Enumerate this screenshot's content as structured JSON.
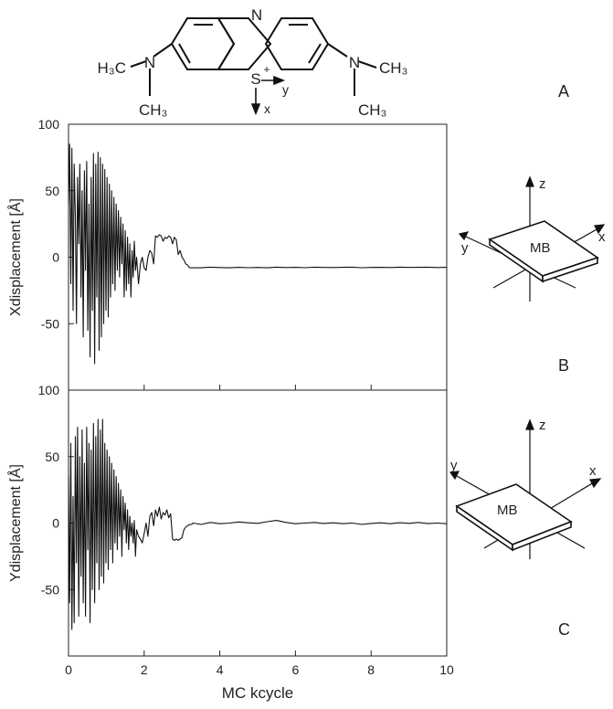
{
  "molecule": {
    "atoms": {
      "n_ring": "N",
      "s_ring": "S",
      "n_left": "N",
      "n_right": "N",
      "h3c_left": "H₃C",
      "ch3_left": "CH₃",
      "ch3_right_top": "CH₃",
      "ch3_right_bottom": "CH₃",
      "s_charge": "+"
    },
    "axes": {
      "x": "x",
      "y": "y"
    }
  },
  "panel_labels": {
    "a": "A",
    "b": "B",
    "c": "C"
  },
  "inset_b": {
    "z": "z",
    "x": "x",
    "y": "y",
    "mb": "MB"
  },
  "inset_c": {
    "z": "z",
    "x": "x",
    "y": "y",
    "mb": "MB"
  },
  "chart_data": [
    {
      "type": "line",
      "panel": "B",
      "xlabel": "",
      "ylabel": "Xdisplacement [Å]",
      "xlim": [
        0,
        10
      ],
      "ylim": [
        -100,
        100
      ],
      "xticks": [
        "0",
        "2",
        "4",
        "6",
        "8",
        "10"
      ],
      "yticks": [
        "100",
        "50",
        "0",
        "-50"
      ],
      "grid": false,
      "series": [
        {
          "x": [
            0,
            0.03,
            0.06,
            0.09,
            0.12,
            0.15,
            0.18,
            0.21,
            0.24,
            0.27,
            0.3,
            0.33,
            0.36,
            0.39,
            0.42,
            0.45,
            0.48,
            0.51,
            0.54,
            0.57,
            0.6,
            0.63,
            0.66,
            0.69,
            0.72,
            0.75,
            0.78,
            0.81,
            0.84,
            0.87,
            0.9,
            0.93,
            0.96,
            0.99,
            1.02,
            1.05,
            1.08,
            1.11,
            1.14,
            1.17,
            1.2,
            1.23,
            1.26,
            1.29,
            1.32,
            1.35,
            1.38,
            1.41,
            1.44,
            1.47,
            1.5,
            1.53,
            1.56,
            1.59,
            1.62,
            1.65,
            1.68,
            1.71,
            1.74,
            1.77,
            1.8,
            1.85,
            1.9,
            1.95,
            2.0,
            2.05,
            2.1,
            2.15,
            2.2,
            2.25,
            2.3,
            2.35,
            2.4,
            2.45,
            2.5,
            2.55,
            2.6,
            2.65,
            2.7,
            2.75,
            2.8,
            2.85,
            2.9,
            2.95,
            3.0,
            3.05,
            3.1,
            3.15,
            3.2,
            3.25,
            3.3,
            3.5,
            3.75,
            4.0,
            4.25,
            4.5,
            4.75,
            5.0,
            5.25,
            5.5,
            5.75,
            6.0,
            6.25,
            6.5,
            6.75,
            7.0,
            7.25,
            7.5,
            7.75,
            8.0,
            8.25,
            8.5,
            8.75,
            9.0,
            9.25,
            9.5,
            9.75,
            10.0
          ],
          "y": [
            40,
            85,
            -20,
            82,
            -40,
            70,
            30,
            -50,
            60,
            10,
            70,
            -30,
            50,
            -60,
            65,
            -10,
            72,
            -55,
            40,
            -75,
            60,
            -40,
            78,
            -80,
            70,
            -30,
            79,
            -70,
            75,
            -60,
            70,
            -50,
            66,
            -40,
            60,
            -45,
            55,
            -30,
            50,
            -20,
            45,
            -25,
            40,
            -10,
            35,
            -15,
            30,
            -5,
            25,
            -30,
            20,
            -25,
            15,
            -20,
            10,
            -30,
            5,
            -15,
            12,
            -10,
            0,
            -20,
            -5,
            0,
            -8,
            -10,
            0,
            5,
            3,
            -5,
            16,
            15,
            17,
            16,
            12,
            15,
            14,
            16,
            15,
            10,
            15,
            13,
            2,
            5,
            0,
            -2,
            -5,
            -6,
            -8,
            -8,
            -8,
            -8,
            -7.5,
            -7.8,
            -8,
            -7.6,
            -7.9,
            -7.7,
            -8,
            -7.5,
            -7.8,
            -7.6,
            -7.9,
            -7.5,
            -7.7,
            -7.8,
            -7.6,
            -7.5,
            -7.9,
            -7.7,
            -7.6,
            -7.8,
            -7.5,
            -7.7,
            -7.6,
            -7.5,
            -7.8,
            -7.6
          ]
        }
      ]
    },
    {
      "type": "line",
      "panel": "C",
      "xlabel": "MC kcycle",
      "ylabel": "Ydisplacement [Å]",
      "xlim": [
        0,
        10
      ],
      "ylim": [
        -100,
        100
      ],
      "xticks": [
        "0",
        "2",
        "4",
        "6",
        "8",
        "10"
      ],
      "yticks": [
        "100",
        "50",
        "0",
        "-50"
      ],
      "grid": false,
      "series": [
        {
          "x": [
            0,
            0.03,
            0.06,
            0.09,
            0.12,
            0.15,
            0.18,
            0.21,
            0.24,
            0.27,
            0.3,
            0.33,
            0.36,
            0.39,
            0.42,
            0.45,
            0.48,
            0.51,
            0.54,
            0.57,
            0.6,
            0.63,
            0.66,
            0.69,
            0.72,
            0.75,
            0.78,
            0.81,
            0.84,
            0.87,
            0.9,
            0.93,
            0.96,
            0.99,
            1.02,
            1.05,
            1.08,
            1.11,
            1.14,
            1.17,
            1.2,
            1.23,
            1.26,
            1.29,
            1.32,
            1.35,
            1.38,
            1.41,
            1.44,
            1.47,
            1.5,
            1.53,
            1.56,
            1.59,
            1.62,
            1.65,
            1.68,
            1.71,
            1.74,
            1.77,
            1.8,
            1.85,
            1.9,
            1.95,
            2.0,
            2.05,
            2.1,
            2.15,
            2.2,
            2.25,
            2.3,
            2.35,
            2.4,
            2.45,
            2.5,
            2.55,
            2.6,
            2.65,
            2.7,
            2.75,
            2.8,
            2.85,
            2.9,
            2.95,
            3.0,
            3.05,
            3.1,
            3.15,
            3.2,
            3.25,
            3.3,
            3.5,
            3.75,
            4.0,
            4.25,
            4.5,
            4.75,
            5.0,
            5.25,
            5.5,
            5.75,
            6.0,
            6.25,
            6.5,
            6.75,
            7.0,
            7.25,
            7.5,
            7.75,
            8.0,
            8.25,
            8.5,
            8.75,
            9.0,
            9.25,
            9.5,
            9.75,
            10.0
          ],
          "y": [
            35,
            -60,
            60,
            -80,
            20,
            -75,
            65,
            -30,
            72,
            -70,
            50,
            -40,
            70,
            -60,
            45,
            -70,
            72,
            -20,
            60,
            -75,
            55,
            -50,
            75,
            -60,
            65,
            -30,
            78,
            -50,
            70,
            -40,
            78,
            -45,
            60,
            -30,
            55,
            -35,
            50,
            -20,
            45,
            -30,
            40,
            -15,
            35,
            -20,
            30,
            -10,
            25,
            -25,
            20,
            -5,
            15,
            -15,
            10,
            -20,
            5,
            -10,
            0,
            -15,
            2,
            -25,
            -5,
            -10,
            -12,
            -15,
            -8,
            0,
            -10,
            5,
            8,
            -2,
            10,
            5,
            12,
            3,
            8,
            6,
            10,
            4,
            7,
            -12,
            -13,
            -12,
            -13,
            -12,
            -11,
            -5,
            -3,
            -2,
            -1,
            -1,
            0,
            -1,
            0.5,
            -0.5,
            0,
            0.8,
            0.2,
            -0.2,
            1,
            2,
            0.5,
            -0.5,
            0,
            0.5,
            -0.3,
            0.2,
            -0.5,
            0,
            -1,
            -0.3,
            0.2,
            -0.5,
            0.3,
            -0.2,
            0.5,
            -0.4,
            0,
            -0.5
          ]
        }
      ]
    }
  ]
}
